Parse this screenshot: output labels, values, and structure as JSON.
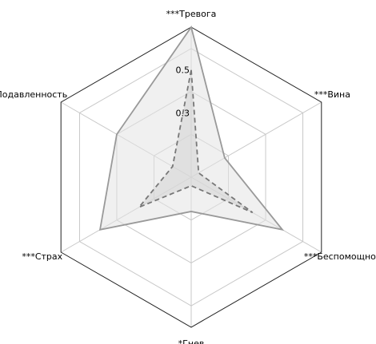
{
  "chart_data": {
    "type": "radar",
    "axes": [
      "***Тревога",
      "***Вина",
      "***Беспомощность",
      "*Гнев",
      "***Страх",
      "***Подавленность"
    ],
    "radial_ticks": [
      {
        "value": 0.3,
        "label": "0.3"
      },
      {
        "value": 0.5,
        "label": "0.5"
      }
    ],
    "grid_levels": [
      0.2,
      0.4,
      0.6,
      0.7
    ],
    "rlim": [
      0,
      0.7
    ],
    "series": [
      {
        "style": "solid",
        "values": [
          0.7,
          0.18,
          0.49,
          0.16,
          0.49,
          0.4
        ],
        "line_color": "#999999",
        "fill_color": "#e3e3e3"
      },
      {
        "style": "dashed",
        "values": [
          0.5,
          0.04,
          0.33,
          0.04,
          0.28,
          0.1
        ],
        "line_color": "#777777",
        "fill_color": "#d4d4d4"
      }
    ],
    "grid": true,
    "legend": "none"
  }
}
